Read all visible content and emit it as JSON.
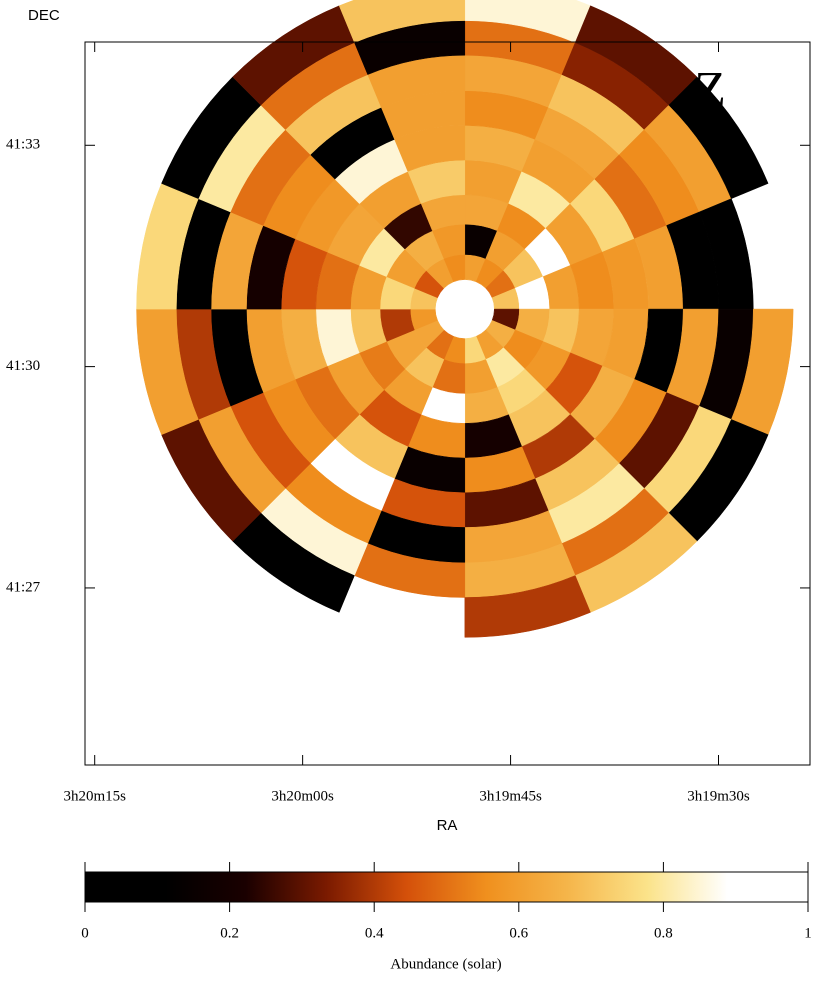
{
  "chart_data": {
    "type": "polar-heatmap",
    "annotation": "Z",
    "x_label": "RA",
    "y_label": "DEC",
    "xlim": [
      12015.7,
      11963.4
    ],
    "ylim": [
      2484.6,
      2494.4
    ],
    "xticks": [
      {
        "value": 12015,
        "label": "3h20m15s"
      },
      {
        "value": 12000,
        "label": "3h20m00s"
      },
      {
        "value": 11985,
        "label": "3h19m45s"
      },
      {
        "value": 11970,
        "label": "3h19m30s"
      }
    ],
    "yticks": [
      {
        "value": 2493,
        "label": "41:33"
      },
      {
        "value": 2490,
        "label": "41:30"
      },
      {
        "value": 2487,
        "label": "41:27"
      }
    ],
    "center": [
      11988.3,
      2490.78
    ],
    "radii": [
      0.4,
      0.74,
      1.15,
      1.55,
      2.02,
      2.49,
      2.96,
      3.44,
      3.91,
      4.45
    ],
    "values": [
      [
        0.6,
        0.55,
        0.5,
        0.7,
        0.3,
        0.65,
        0.6,
        0.75,
        0.55,
        0.5,
        0.62,
        0.58,
        0.7,
        0.45,
        0.6,
        0.55
      ],
      [
        0.15,
        0.6,
        0.7,
        0.95,
        0.65,
        0.55,
        0.8,
        0.6,
        0.5,
        0.7,
        0.62,
        0.4,
        0.75,
        0.6,
        0.65,
        0.58
      ],
      [
        0.62,
        0.55,
        0.95,
        0.6,
        0.7,
        0.58,
        0.75,
        0.65,
        0.95,
        0.6,
        0.52,
        0.7,
        0.6,
        0.8,
        0.25,
        0.62
      ],
      [
        0.6,
        0.8,
        0.6,
        0.55,
        0.62,
        0.45,
        0.7,
        0.2,
        0.55,
        0.45,
        0.6,
        0.85,
        0.5,
        0.62,
        0.6,
        0.72
      ],
      [
        0.65,
        0.6,
        0.75,
        0.58,
        0.6,
        0.65,
        0.4,
        0.55,
        0.15,
        0.7,
        0.5,
        0.65,
        0.45,
        0.58,
        0.85,
        0.6
      ],
      [
        0.55,
        0.62,
        0.5,
        0.6,
        0.1,
        0.55,
        0.7,
        0.3,
        0.45,
        0.95,
        0.55,
        0.6,
        0.2,
        0.55,
        0.1,
        0.6
      ],
      [
        0.62,
        0.7,
        0.55,
        0.1,
        0.6,
        0.3,
        0.8,
        0.62,
        0.05,
        0.55,
        0.45,
        0.1,
        0.62,
        0.5,
        0.7,
        0.6
      ],
      [
        0.5,
        0.35,
        0.6,
        0.05,
        0.15,
        0.75,
        0.5,
        0.65,
        0.5,
        0.85,
        0.6,
        0.4,
        0.1,
        0.8,
        0.5,
        0.15
      ],
      [
        0.85,
        0.3,
        0.1,
        null,
        0.6,
        0.05,
        0.7,
        0.4,
        null,
        0.05,
        0.3,
        0.6,
        0.75,
        0.05,
        0.3,
        0.7
      ]
    ],
    "colormap": [
      "#000000",
      "#000000",
      "#1a0000",
      "#7a1a00",
      "#d4500a",
      "#f0901e",
      "#f5b54a",
      "#fbe38a",
      "#ffffff",
      "#ffffff"
    ],
    "clim": [
      0,
      1
    ],
    "colorbar_label": "Abundance (solar)",
    "colorbar_ticks": [
      0,
      0.2,
      0.4,
      0.6,
      0.8,
      1
    ]
  }
}
